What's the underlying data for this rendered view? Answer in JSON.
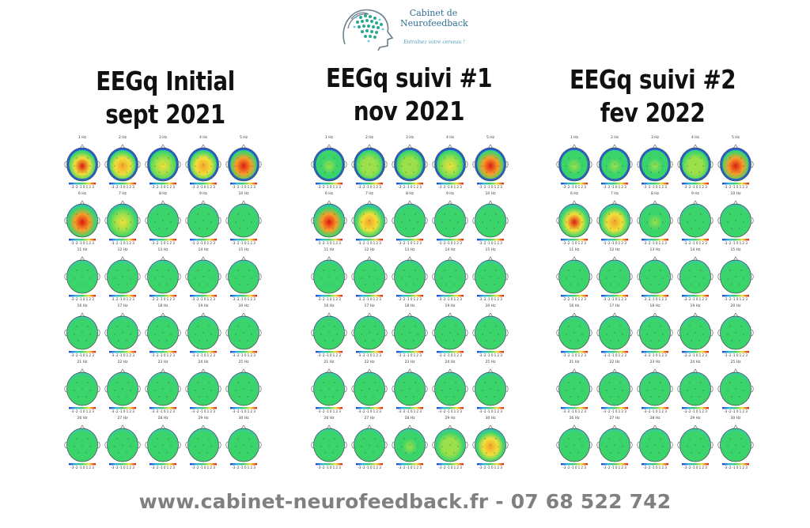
{
  "logo": {
    "line1": "Cabinet de",
    "line2": "Neurofeedback",
    "tagline": "Entraînez votre cerveau !"
  },
  "panels": [
    {
      "title_line1": "EEGq Initial",
      "title_line2": "sept 2021",
      "hz_labels": [
        "1 Hz",
        "2 Hz",
        "3 Hz",
        "4 Hz",
        "5 Hz",
        "6 Hz",
        "7 Hz",
        "8 Hz",
        "9 Hz",
        "10 Hz",
        "11 Hz",
        "12 Hz",
        "13 Hz",
        "14 Hz",
        "15 Hz",
        "16 Hz",
        "17 Hz",
        "18 Hz",
        "19 Hz",
        "20 Hz",
        "21 Hz",
        "22 Hz",
        "23 Hz",
        "24 Hz",
        "25 Hz",
        "26 Hz",
        "27 Hz",
        "28 Hz",
        "29 Hz",
        "30 Hz"
      ],
      "activity": [
        0.85,
        0.7,
        0.55,
        0.75,
        0.95,
        0.95,
        0.6,
        0.2,
        0.2,
        0.2,
        0.15,
        0.15,
        0.1,
        0.1,
        0.1,
        0.1,
        0.1,
        0.1,
        0.1,
        0.1,
        0.1,
        0.1,
        0.1,
        0.1,
        0.1,
        0.1,
        0.1,
        0.1,
        0.1,
        0.15
      ]
    },
    {
      "title_line1": "EEGq suivi #1",
      "title_line2": "nov 2021",
      "hz_labels": [
        "1 Hz",
        "2 Hz",
        "3 Hz",
        "4 Hz",
        "5 Hz",
        "6 Hz",
        "7 Hz",
        "8 Hz",
        "9 Hz",
        "10 Hz",
        "11 Hz",
        "12 Hz",
        "13 Hz",
        "14 Hz",
        "15 Hz",
        "16 Hz",
        "17 Hz",
        "18 Hz",
        "19 Hz",
        "20 Hz",
        "21 Hz",
        "22 Hz",
        "23 Hz",
        "24 Hz",
        "25 Hz",
        "26 Hz",
        "27 Hz",
        "28 Hz",
        "29 Hz",
        "30 Hz"
      ],
      "activity": [
        0.3,
        0.4,
        0.45,
        0.6,
        0.9,
        0.95,
        0.75,
        0.25,
        0.2,
        0.2,
        0.15,
        0.15,
        0.15,
        0.15,
        0.15,
        0.15,
        0.15,
        0.15,
        0.15,
        0.15,
        0.2,
        0.15,
        0.15,
        0.2,
        0.25,
        0.25,
        0.25,
        0.3,
        0.45,
        0.7
      ]
    },
    {
      "title_line1": "EEGq suivi #2",
      "title_line2": "fev 2022",
      "hz_labels": [
        "1 Hz",
        "2 Hz",
        "3 Hz",
        "4 Hz",
        "5 Hz",
        "6 Hz",
        "7 Hz",
        "8 Hz",
        "9 Hz",
        "10 Hz",
        "11 Hz",
        "12 Hz",
        "13 Hz",
        "14 Hz",
        "15 Hz",
        "16 Hz",
        "17 Hz",
        "18 Hz",
        "19 Hz",
        "20 Hz",
        "21 Hz",
        "22 Hz",
        "23 Hz",
        "24 Hz",
        "25 Hz",
        "26 Hz",
        "27 Hz",
        "28 Hz",
        "29 Hz",
        "30 Hz"
      ],
      "activity": [
        0.35,
        0.35,
        0.35,
        0.45,
        0.9,
        0.85,
        0.75,
        0.3,
        0.25,
        0.2,
        0.1,
        0.1,
        0.1,
        0.1,
        0.1,
        0.1,
        0.1,
        0.1,
        0.1,
        0.1,
        0.05,
        0.05,
        0.05,
        0.05,
        0.05,
        0.05,
        0.05,
        0.05,
        0.05,
        0.05
      ]
    }
  ],
  "colorbar_scale": "-3 -2 -1 0 1 2 3",
  "colors": {
    "low": "#1f3fd8",
    "mid": "#3ad46a",
    "high": "#e01a12"
  },
  "footer": "www.cabinet-neurofeedback.fr - 07 68 522 742"
}
